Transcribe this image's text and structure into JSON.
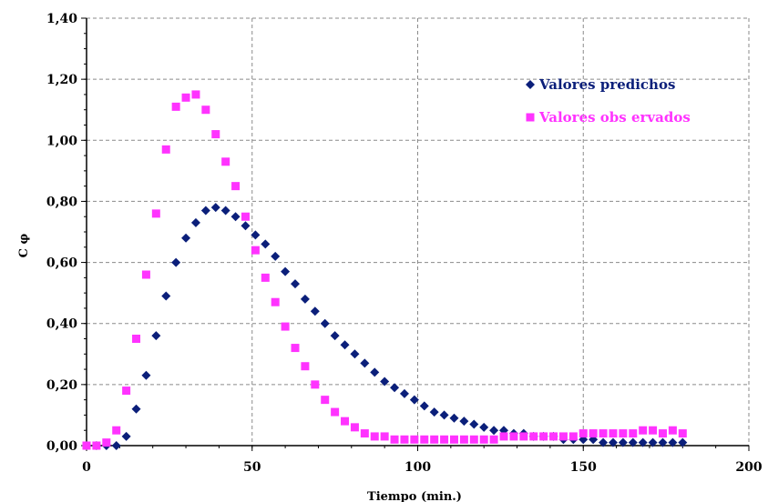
{
  "chart_data": {
    "type": "scatter",
    "title": "",
    "xlabel": "Tiempo (min.)",
    "ylabel": "C φ",
    "xlim": [
      0,
      200
    ],
    "ylim": [
      0,
      1.4
    ],
    "x_ticks": [
      "0",
      "50",
      "100",
      "150",
      "200"
    ],
    "y_ticks": [
      "0,00",
      "0,20",
      "0,40",
      "0,60",
      "0,80",
      "1,00",
      "1,20",
      "1,40"
    ],
    "grid": true,
    "legend_position": "top-right",
    "series": [
      {
        "name": "Valores predichos",
        "marker": "diamond",
        "color": "#0b1f7a",
        "x": [
          0,
          3,
          6,
          9,
          12,
          15,
          18,
          21,
          24,
          27,
          30,
          33,
          36,
          39,
          42,
          45,
          48,
          51,
          54,
          57,
          60,
          63,
          66,
          69,
          72,
          75,
          78,
          81,
          84,
          87,
          90,
          93,
          96,
          99,
          102,
          105,
          108,
          111,
          114,
          117,
          120,
          123,
          126,
          129,
          132,
          135,
          138,
          141,
          144,
          147,
          150,
          153,
          156,
          159,
          162,
          165,
          168,
          171,
          174,
          177,
          180
        ],
        "y": [
          0.0,
          0.0,
          0.0,
          0.0,
          0.03,
          0.12,
          0.23,
          0.36,
          0.49,
          0.6,
          0.68,
          0.73,
          0.77,
          0.78,
          0.77,
          0.75,
          0.72,
          0.69,
          0.66,
          0.62,
          0.57,
          0.53,
          0.48,
          0.44,
          0.4,
          0.36,
          0.33,
          0.3,
          0.27,
          0.24,
          0.21,
          0.19,
          0.17,
          0.15,
          0.13,
          0.11,
          0.1,
          0.09,
          0.08,
          0.07,
          0.06,
          0.05,
          0.05,
          0.04,
          0.04,
          0.03,
          0.03,
          0.03,
          0.02,
          0.02,
          0.02,
          0.02,
          0.01,
          0.01,
          0.01,
          0.01,
          0.01,
          0.01,
          0.01,
          0.01,
          0.01
        ]
      },
      {
        "name": "Valores obs ervados",
        "marker": "square",
        "color": "#ff33ff",
        "x": [
          0,
          3,
          6,
          9,
          12,
          15,
          18,
          21,
          24,
          27,
          30,
          33,
          36,
          39,
          42,
          45,
          48,
          51,
          54,
          57,
          60,
          63,
          66,
          69,
          72,
          75,
          78,
          81,
          84,
          87,
          90,
          93,
          96,
          99,
          102,
          105,
          108,
          111,
          114,
          117,
          120,
          123,
          126,
          129,
          132,
          135,
          138,
          141,
          144,
          147,
          150,
          153,
          156,
          159,
          162,
          165,
          168,
          171,
          174,
          177,
          180
        ],
        "y": [
          0.0,
          0.0,
          0.01,
          0.05,
          0.18,
          0.35,
          0.56,
          0.76,
          0.97,
          1.11,
          1.14,
          1.15,
          1.1,
          1.02,
          0.93,
          0.85,
          0.75,
          0.64,
          0.55,
          0.47,
          0.39,
          0.32,
          0.26,
          0.2,
          0.15,
          0.11,
          0.08,
          0.06,
          0.04,
          0.03,
          0.03,
          0.02,
          0.02,
          0.02,
          0.02,
          0.02,
          0.02,
          0.02,
          0.02,
          0.02,
          0.02,
          0.02,
          0.03,
          0.03,
          0.03,
          0.03,
          0.03,
          0.03,
          0.03,
          0.03,
          0.04,
          0.04,
          0.04,
          0.04,
          0.04,
          0.04,
          0.05,
          0.05,
          0.04,
          0.05,
          0.04
        ]
      }
    ]
  },
  "colors": {
    "grid": "#8a8a8a",
    "axis": "#000000"
  }
}
